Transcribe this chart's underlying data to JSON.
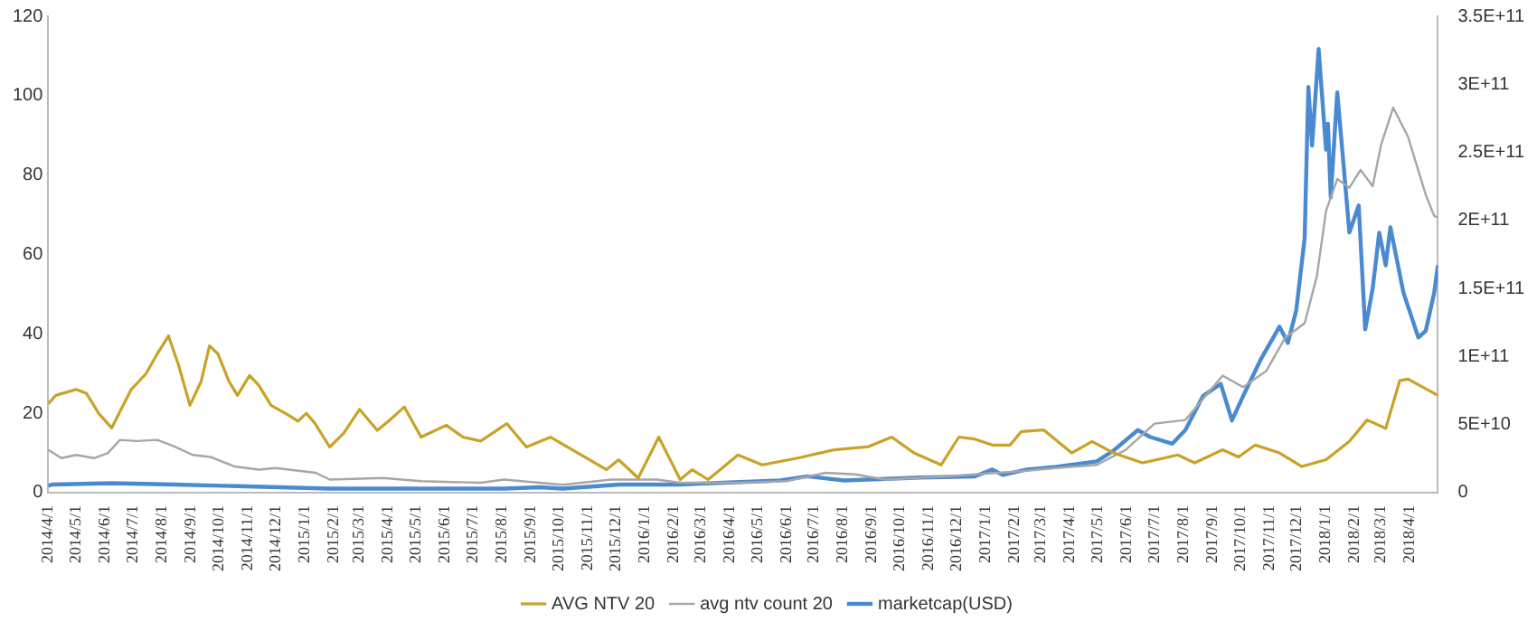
{
  "chart_data": {
    "type": "line",
    "xlim": [
      "2014-04-01",
      "2018-05-01"
    ],
    "xticks": [
      {
        "value": "2014-04-01",
        "label": "2014/4/1"
      },
      {
        "value": "2014-05-01",
        "label": "2014/5/1"
      },
      {
        "value": "2014-06-01",
        "label": "2014/6/1"
      },
      {
        "value": "2014-07-01",
        "label": "2014/7/1"
      },
      {
        "value": "2014-08-01",
        "label": "2014/8/1"
      },
      {
        "value": "2014-09-01",
        "label": "2014/9/1"
      },
      {
        "value": "2014-10-01",
        "label": "2014/10/1"
      },
      {
        "value": "2014-11-01",
        "label": "2014/11/1"
      },
      {
        "value": "2014-12-01",
        "label": "2014/12/1"
      },
      {
        "value": "2015-01-01",
        "label": "2015/1/1"
      },
      {
        "value": "2015-02-01",
        "label": "2015/2/1"
      },
      {
        "value": "2015-03-01",
        "label": "2015/3/1"
      },
      {
        "value": "2015-04-01",
        "label": "2015/4/1"
      },
      {
        "value": "2015-05-01",
        "label": "2015/5/1"
      },
      {
        "value": "2015-06-01",
        "label": "2015/6/1"
      },
      {
        "value": "2015-07-01",
        "label": "2015/7/1"
      },
      {
        "value": "2015-08-01",
        "label": "2015/8/1"
      },
      {
        "value": "2015-09-01",
        "label": "2015/9/1"
      },
      {
        "value": "2015-10-01",
        "label": "2015/10/1"
      },
      {
        "value": "2015-11-01",
        "label": "2015/11/1"
      },
      {
        "value": "2015-12-01",
        "label": "2015/12/1"
      },
      {
        "value": "2016-01-01",
        "label": "2016/1/1"
      },
      {
        "value": "2016-02-01",
        "label": "2016/2/1"
      },
      {
        "value": "2016-03-01",
        "label": "2016/3/1"
      },
      {
        "value": "2016-04-01",
        "label": "2016/4/1"
      },
      {
        "value": "2016-05-01",
        "label": "2016/5/1"
      },
      {
        "value": "2016-06-01",
        "label": "2016/6/1"
      },
      {
        "value": "2016-07-01",
        "label": "2016/7/1"
      },
      {
        "value": "2016-08-01",
        "label": "2016/8/1"
      },
      {
        "value": "2016-09-01",
        "label": "2016/9/1"
      },
      {
        "value": "2016-10-01",
        "label": "2016/10/1"
      },
      {
        "value": "2016-11-01",
        "label": "2016/11/1"
      },
      {
        "value": "2016-12-01",
        "label": "2016/12/1"
      },
      {
        "value": "2017-01-01",
        "label": "2017/1/1"
      },
      {
        "value": "2017-02-01",
        "label": "2017/2/1"
      },
      {
        "value": "2017-03-01",
        "label": "2017/3/1"
      },
      {
        "value": "2017-04-01",
        "label": "2017/4/1"
      },
      {
        "value": "2017-05-01",
        "label": "2017/5/1"
      },
      {
        "value": "2017-06-01",
        "label": "2017/6/1"
      },
      {
        "value": "2017-07-01",
        "label": "2017/7/1"
      },
      {
        "value": "2017-08-01",
        "label": "2017/8/1"
      },
      {
        "value": "2017-09-01",
        "label": "2017/9/1"
      },
      {
        "value": "2017-10-01",
        "label": "2017/10/1"
      },
      {
        "value": "2017-11-01",
        "label": "2017/11/1"
      },
      {
        "value": "2017-12-01",
        "label": "2017/12/1"
      },
      {
        "value": "2018-01-01",
        "label": "2018/1/1"
      },
      {
        "value": "2018-02-01",
        "label": "2018/2/1"
      },
      {
        "value": "2018-03-01",
        "label": "2018/3/1"
      },
      {
        "value": "2018-04-01",
        "label": "2018/4/1"
      }
    ],
    "ylim": [
      0,
      120
    ],
    "yticks": [
      0,
      20,
      40,
      60,
      80,
      100,
      120
    ],
    "y2lim": [
      0,
      350000000000
    ],
    "y2ticks": [
      0,
      {
        "value": 50000000000,
        "label": "5E+10"
      },
      {
        "value": 100000000000,
        "label": "1E+11"
      },
      {
        "value": 150000000000,
        "label": "1.5E+11"
      },
      {
        "value": 200000000000,
        "label": "2E+11"
      },
      {
        "value": 250000000000,
        "label": "2.5E+11"
      },
      {
        "value": 300000000000,
        "label": "3E+11"
      },
      {
        "value": 350000000000,
        "label": "3.5E+11"
      }
    ],
    "grid": false,
    "legend": "bottom",
    "marker": "none",
    "line_style": "solid",
    "series": [
      {
        "name": "AVG NTV 20",
        "color": "#c9a227",
        "x": [
          "2014-04-01",
          "2014-04-09",
          "2014-05-01",
          "2014-05-12",
          "2014-05-25",
          "2014-06-08",
          "2014-06-29",
          "2014-07-15",
          "2014-07-27",
          "2014-08-08",
          "2014-08-19",
          "2014-08-31",
          "2014-09-12",
          "2014-09-21",
          "2014-09-30",
          "2014-10-12",
          "2014-10-21",
          "2014-11-03",
          "2014-11-13",
          "2014-11-26",
          "2014-12-15",
          "2014-12-25",
          "2015-01-03",
          "2015-01-12",
          "2015-01-28",
          "2015-02-12",
          "2015-03-01",
          "2015-03-20",
          "2015-04-01",
          "2015-04-18",
          "2015-05-06",
          "2015-06-02",
          "2015-06-20",
          "2015-07-09",
          "2015-08-06",
          "2015-08-27",
          "2015-09-22",
          "2015-11-21",
          "2015-12-04",
          "2015-12-25",
          "2016-01-16",
          "2016-02-08",
          "2016-02-21",
          "2016-03-09",
          "2016-04-10",
          "2016-05-06",
          "2016-06-13",
          "2016-07-22",
          "2016-08-28",
          "2016-09-22",
          "2016-10-16",
          "2016-11-14",
          "2016-12-03",
          "2016-12-20",
          "2017-01-08",
          "2017-01-27",
          "2017-02-08",
          "2017-03-04",
          "2017-04-03",
          "2017-04-25",
          "2017-05-18",
          "2017-06-18",
          "2017-07-26",
          "2017-08-13",
          "2017-09-12",
          "2017-09-29",
          "2017-10-17",
          "2017-11-12",
          "2017-12-06",
          "2018-01-01",
          "2018-01-26",
          "2018-02-14",
          "2018-03-06",
          "2018-03-21",
          "2018-03-30",
          "2018-05-01"
        ],
        "values": [
          22.4,
          24.5,
          26,
          25,
          20,
          16.3,
          26,
          30,
          35,
          39.5,
          32,
          22,
          28,
          37,
          35,
          28,
          24.5,
          29.5,
          27,
          22,
          19.5,
          18,
          20,
          17.5,
          11.5,
          15,
          21,
          15.7,
          18,
          21.6,
          14,
          17,
          14,
          13,
          17.4,
          11.5,
          14,
          5.8,
          8.3,
          3.7,
          14,
          3.3,
          5.8,
          3.3,
          9.5,
          7,
          8.7,
          10.8,
          11.6,
          14,
          10,
          7,
          14,
          13.5,
          12,
          12,
          15.4,
          15.8,
          10,
          12.9,
          10,
          7.5,
          9.5,
          7.5,
          10.8,
          9,
          12,
          10,
          6.6,
          8.3,
          12.9,
          18.3,
          16.2,
          28.2,
          28.6,
          24.5
        ]
      },
      {
        "name": "avg ntv count 20",
        "color": "#a6a6a6",
        "x": [
          "2014-04-01",
          "2014-04-15",
          "2014-05-01",
          "2014-05-20",
          "2014-06-04",
          "2014-06-17",
          "2014-07-05",
          "2014-07-27",
          "2014-08-15",
          "2014-09-03",
          "2014-09-22",
          "2014-10-18",
          "2014-11-13",
          "2014-12-01",
          "2015-01-13",
          "2015-01-28",
          "2015-03-26",
          "2015-05-06",
          "2015-07-09",
          "2015-08-03",
          "2015-09-10",
          "2015-10-05",
          "2015-11-26",
          "2016-01-14",
          "2016-02-08",
          "2016-04-10",
          "2016-06-01",
          "2016-07-13",
          "2016-08-14",
          "2016-09-15",
          "2016-11-18",
          "2017-02-08",
          "2017-03-17",
          "2017-04-30",
          "2017-05-31",
          "2017-07-01",
          "2017-08-03",
          "2017-09-12",
          "2017-10-04",
          "2017-10-29",
          "2017-11-18",
          "2017-12-09",
          "2017-12-22",
          "2018-01-01",
          "2018-01-13",
          "2018-01-26",
          "2018-02-07",
          "2018-02-20",
          "2018-03-01",
          "2018-03-14",
          "2018-03-30",
          "2018-04-18",
          "2018-04-27",
          "2018-05-01"
        ],
        "values": [
          10.8,
          8.7,
          9.5,
          8.7,
          10,
          13.3,
          13,
          13.3,
          11.6,
          9.5,
          9,
          6.6,
          5.8,
          6.2,
          5,
          3.3,
          3.7,
          2.9,
          2.5,
          3.3,
          2.5,
          2,
          3.3,
          3.3,
          2.5,
          2.5,
          2.9,
          5,
          4.6,
          3.3,
          4.1,
          5.4,
          6.2,
          7,
          10.8,
          17.4,
          18.3,
          29.5,
          26.6,
          30.7,
          39,
          42.7,
          54.4,
          71,
          79,
          76.8,
          81.3,
          77.2,
          87.6,
          97,
          89.6,
          75,
          69.7,
          69.3
        ]
      },
      {
        "name": "marketcap(USD)",
        "color": "#4a8ad0",
        "axis": "y2",
        "x": [
          "2014-04-01",
          "2014-04-05",
          "2014-06-08",
          "2014-08-15",
          "2015-01-28",
          "2015-08-03",
          "2015-09-10",
          "2015-10-05",
          "2015-12-05",
          "2016-02-08",
          "2016-05-25",
          "2016-06-24",
          "2016-08-02",
          "2016-10-16",
          "2016-12-20",
          "2017-01-08",
          "2017-01-19",
          "2017-02-14",
          "2017-03-17",
          "2017-04-30",
          "2017-05-18",
          "2017-06-13",
          "2017-06-26",
          "2017-07-20",
          "2017-08-03",
          "2017-08-22",
          "2017-09-10",
          "2017-09-22",
          "2017-10-04",
          "2017-10-23",
          "2017-11-12",
          "2017-11-21",
          "2017-11-30",
          "2017-12-09",
          "2017-12-13",
          "2017-12-17",
          "2017-12-24",
          "2018-01-01",
          "2018-01-03",
          "2018-01-06",
          "2018-01-13",
          "2018-01-21",
          "2018-01-26",
          "2018-02-05",
          "2018-02-12",
          "2018-02-20",
          "2018-02-27",
          "2018-03-06",
          "2018-03-11",
          "2018-03-25",
          "2018-04-10",
          "2018-04-18",
          "2018-04-27",
          "2018-05-01"
        ],
        "values": [
          5000000000.0,
          6000000000.0,
          7000000000.0,
          6000000000.0,
          3000000000.0,
          3000000000.0,
          4000000000.0,
          3000000000.0,
          6000000000.0,
          6000000000.0,
          9000000000.0,
          12000000000.0,
          9000000000.0,
          11000000000.0,
          12000000000.0,
          17000000000.0,
          13000000000.0,
          17000000000.0,
          19000000000.0,
          23000000000.0,
          31000000000.0,
          46000000000.0,
          41000000000.0,
          36000000000.0,
          46000000000.0,
          71000000000.0,
          80000000000.0,
          53000000000.0,
          71000000000.0,
          98000000000.0,
          122000000000.0,
          110000000000.0,
          134000000000.0,
          187000000000.0,
          298000000000.0,
          255000000000.0,
          326000000000.0,
          252000000000.0,
          271000000000.0,
          217000000000.0,
          294000000000.0,
          231000000000.0,
          191000000000.0,
          211000000000.0,
          120000000000.0,
          150000000000.0,
          191000000000.0,
          167000000000.0,
          195000000000.0,
          147000000000.0,
          114000000000.0,
          119000000000.0,
          147000000000.0,
          167000000000.0
        ]
      }
    ]
  }
}
